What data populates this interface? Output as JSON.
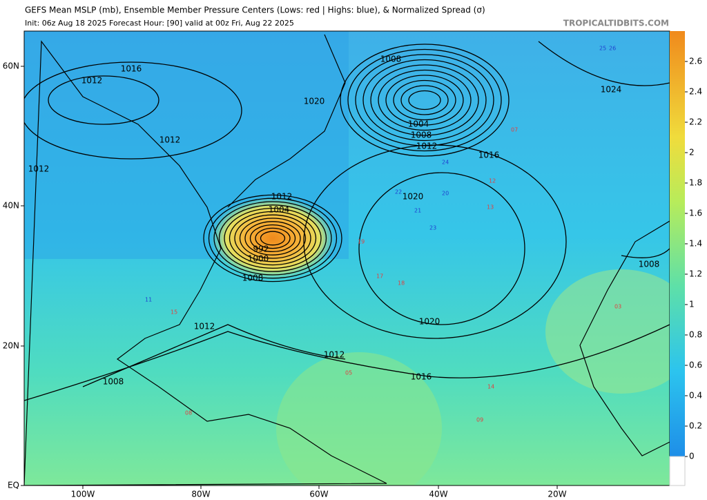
{
  "header": {
    "title": "GEFS Mean MSLP (mb), Ensemble Member Pressure Centers (Lows: red | Highs: blue), & Normalized Spread (σ)",
    "subtitle": "Init: 06z Aug 18 2025   Forecast Hour: [90]   valid at 00z Fri, Aug 22 2025",
    "site": "TROPICALTIDBITS.COM"
  },
  "latitude_labels": [
    "60N",
    "40N",
    "20N",
    "EQ"
  ],
  "longitude_labels": [
    "100W",
    "80W",
    "60W",
    "40W",
    "20W"
  ],
  "colorbar": {
    "ticks": [
      0,
      0.2,
      0.4,
      0.6,
      0.8,
      1,
      1.2,
      1.4,
      1.6,
      1.8,
      2,
      2.2,
      2.4,
      2.6
    ]
  },
  "isobar_labels": [
    "1016",
    "1012",
    "1012",
    "1012",
    "1020",
    "1008",
    "1004",
    "1008",
    "1012",
    "1016",
    "1024",
    "1012",
    "1004",
    "992",
    "1000",
    "1008",
    "1020",
    "1020",
    "1008",
    "1012",
    "1012",
    "1016",
    "1008"
  ],
  "member_centers": [
    "22",
    "21",
    "23",
    "20",
    "24",
    "17",
    "18",
    "19",
    "13",
    "12",
    "25",
    "26",
    "07",
    "08",
    "15",
    "11",
    "09",
    "14",
    "05",
    "03"
  ]
}
